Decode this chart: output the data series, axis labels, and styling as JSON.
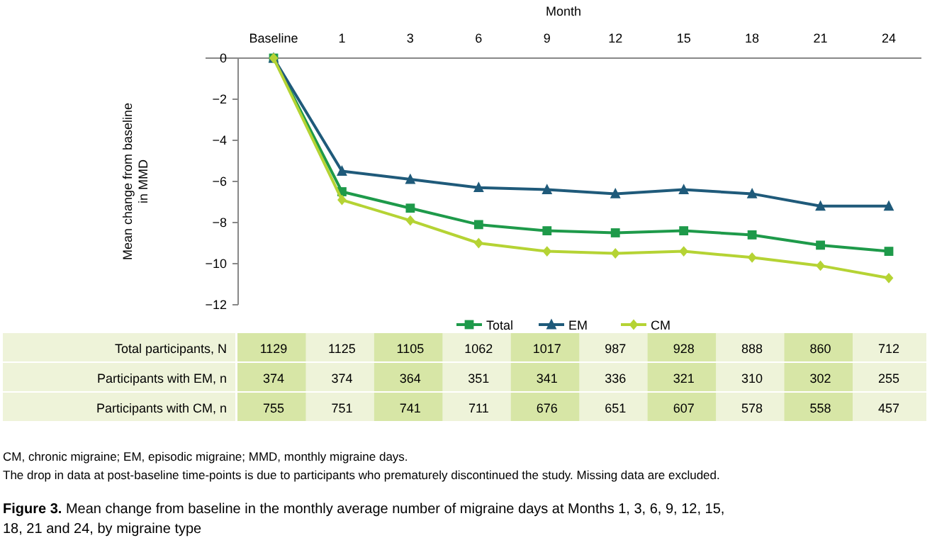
{
  "chart_data": {
    "type": "line",
    "xlabel": "Month",
    "ylabel": "Mean change from baseline in MMD",
    "title": "Figure 3. Mean change from baseline in the monthly average number of migraine days at Months 1, 3, 6, 9, 12, 15, 18, 21 and 24, by migraine type",
    "categories": [
      "Baseline",
      "1",
      "3",
      "6",
      "9",
      "12",
      "15",
      "18",
      "21",
      "24"
    ],
    "ylim": [
      -12,
      0
    ],
    "yticks": [
      0,
      -2,
      -4,
      -6,
      -8,
      -10,
      -12
    ],
    "grid": false,
    "legend": "bottom",
    "line_style": "solid",
    "series": [
      {
        "name": "Total",
        "color": "#1e9a4a",
        "marker": "square",
        "values": [
          0,
          -6.5,
          -7.3,
          -8.1,
          -8.4,
          -8.5,
          -8.4,
          -8.6,
          -9.1,
          -9.4
        ]
      },
      {
        "name": "EM",
        "color": "#1f5a7a",
        "marker": "triangle",
        "values": [
          0,
          -5.5,
          -5.9,
          -6.3,
          -6.4,
          -6.6,
          -6.4,
          -6.6,
          -7.2,
          -7.2
        ]
      },
      {
        "name": "CM",
        "color": "#b5d334",
        "marker": "diamond",
        "values": [
          0,
          -6.9,
          -7.9,
          -9.0,
          -9.4,
          -9.5,
          -9.4,
          -9.7,
          -10.1,
          -10.7
        ]
      }
    ],
    "annotations": [
      "Total participants, N",
      "1129",
      "1125",
      "1105",
      "1062",
      "1017",
      "987",
      "928",
      "888",
      "860",
      "712",
      "Participants with EM, n",
      "374",
      "374",
      "364",
      "351",
      "341",
      "336",
      "321",
      "310",
      "302",
      "255",
      "Participants with CM, n",
      "755",
      "751",
      "741",
      "711",
      "676",
      "651",
      "607",
      "578",
      "558",
      "457",
      "CM, chronic migraine; EM, episodic migraine; MMD, monthly migraine days.",
      "The drop in data at post-baseline time-points is due to participants who prematurely discontinued the study. Missing data are excluded."
    ]
  }
}
